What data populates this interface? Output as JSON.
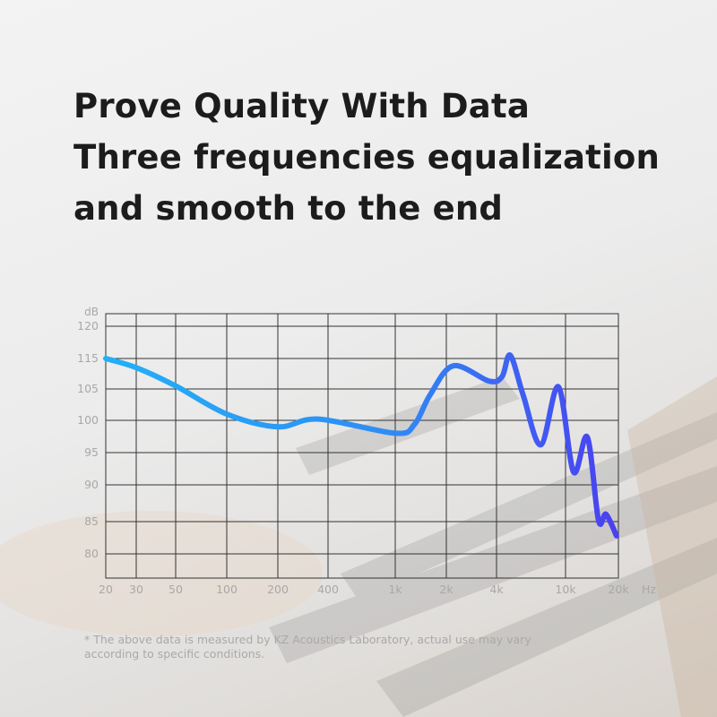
{
  "headline": {
    "lines": [
      "Prove Quality With Data",
      "Three frequencies equalization",
      "and smooth to the end"
    ]
  },
  "footnote": {
    "lines": [
      "* The above data is measured by KZ Acoustics Laboratory, actual use may vary",
      "according to specific conditions."
    ]
  },
  "chart_data": {
    "type": "line",
    "title": "",
    "xlabel": "Hz",
    "ylabel": "dB",
    "x_scale": "log (frequency)",
    "x_ticks": [
      "20",
      "30",
      "50",
      "100",
      "200",
      "400",
      "1k",
      "2k",
      "4k",
      "10k",
      "20k"
    ],
    "x_tick_values": [
      20,
      30,
      50,
      100,
      200,
      400,
      1000,
      2000,
      4000,
      10000,
      20000
    ],
    "y_ticks": [
      "120",
      "115",
      "105",
      "100",
      "95",
      "90",
      "85",
      "80"
    ],
    "y_tick_values": [
      120,
      115,
      105,
      100,
      95,
      90,
      85,
      80
    ],
    "xlim": [
      20,
      20000
    ],
    "grid": true,
    "line_gradient": [
      "#22b0f6",
      "#4a3ff0"
    ],
    "series": [
      {
        "x": [
          20,
          30,
          50,
          100,
          200,
          350,
          1000,
          1300,
          1600,
          2200,
          3600,
          4300,
          4800,
          5700,
          7200,
          9100,
          11100,
          13300,
          15400,
          17000,
          19500
        ],
        "y": [
          115,
          112,
          106,
          101,
          99,
          100.2,
          98,
          99.4,
          104,
          112.6,
          107.6,
          109,
          115.5,
          104,
          96.2,
          105.7,
          92,
          97.4,
          85.2,
          86,
          82.8
        ]
      }
    ]
  }
}
